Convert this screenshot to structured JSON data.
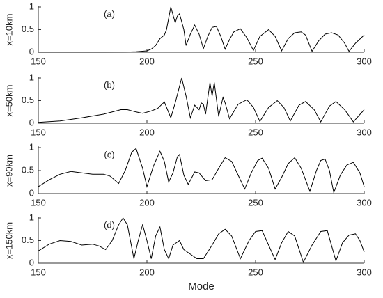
{
  "chart_data": [
    {
      "type": "line",
      "annotation": "(a)",
      "ylabel": "x=10km",
      "x": [
        150,
        160,
        170,
        180,
        190,
        195,
        200,
        202,
        204,
        206,
        208,
        209,
        211,
        213,
        214,
        215,
        217,
        218,
        220,
        222,
        224,
        226,
        228,
        230,
        232,
        234,
        236,
        238,
        240,
        243,
        246,
        249,
        252,
        256,
        259,
        262,
        265,
        268,
        271,
        273,
        276,
        279,
        282,
        285,
        288,
        291,
        293,
        296,
        300
      ],
      "values": [
        0,
        0,
        0,
        0,
        0.005,
        0.01,
        0.03,
        0.07,
        0.15,
        0.3,
        0.38,
        0.5,
        1.0,
        0.65,
        0.8,
        0.85,
        0.5,
        0.15,
        0.4,
        0.6,
        0.4,
        0.08,
        0.35,
        0.55,
        0.57,
        0.35,
        0.07,
        0.28,
        0.45,
        0.52,
        0.32,
        0.04,
        0.35,
        0.5,
        0.35,
        0.03,
        0.3,
        0.43,
        0.45,
        0.38,
        0.02,
        0.25,
        0.4,
        0.43,
        0.38,
        0.2,
        0.02,
        0.2,
        0.38
      ],
      "color": "#000000",
      "xlim": [
        150,
        300
      ],
      "ylim": [
        0,
        1
      ],
      "xticks": [
        150,
        200,
        250,
        300
      ],
      "yticks": [
        0,
        0.5,
        1
      ]
    },
    {
      "type": "line",
      "annotation": "(b)",
      "ylabel": "x=50km",
      "x": [
        150,
        160,
        170,
        180,
        188,
        191,
        195,
        198,
        202,
        205,
        208,
        211,
        213,
        216,
        218,
        220,
        222,
        224,
        225,
        226,
        227,
        229,
        230,
        231,
        233,
        235,
        236,
        238,
        242,
        246,
        249,
        252,
        256,
        260,
        263,
        266,
        270,
        273,
        277,
        280,
        284,
        287,
        291,
        295,
        300
      ],
      "values": [
        0.02,
        0.05,
        0.12,
        0.2,
        0.3,
        0.3,
        0.25,
        0.22,
        0.27,
        0.33,
        0.47,
        0.12,
        0.45,
        1.0,
        0.6,
        0.12,
        0.4,
        0.3,
        0.45,
        0.42,
        0.2,
        0.9,
        0.6,
        0.9,
        0.15,
        0.57,
        0.45,
        0.1,
        0.42,
        0.52,
        0.35,
        0.04,
        0.35,
        0.5,
        0.35,
        0.05,
        0.4,
        0.48,
        0.3,
        0.03,
        0.38,
        0.48,
        0.3,
        0.03,
        0.3
      ],
      "color": "#000000",
      "xlim": [
        150,
        300
      ],
      "ylim": [
        0,
        1
      ],
      "xticks": [
        150,
        200,
        250,
        300
      ],
      "yticks": [
        0,
        0.5,
        1
      ]
    },
    {
      "type": "line",
      "annotation": "(c)",
      "ylabel": "x=90km",
      "x": [
        150,
        155,
        160,
        165,
        170,
        175,
        180,
        183,
        187,
        190,
        193,
        195,
        198,
        200,
        203,
        206,
        208,
        210,
        212,
        214,
        215,
        217,
        219,
        222,
        224,
        227,
        230,
        233,
        236,
        239,
        242,
        245,
        248,
        251,
        253,
        256,
        259,
        262,
        265,
        268,
        271,
        275,
        278,
        280,
        282,
        284,
        286,
        289,
        292,
        295,
        298,
        300
      ],
      "values": [
        0.15,
        0.3,
        0.42,
        0.48,
        0.45,
        0.42,
        0.42,
        0.38,
        0.22,
        0.5,
        0.9,
        0.98,
        0.55,
        0.15,
        0.6,
        0.92,
        0.7,
        0.25,
        0.45,
        0.8,
        0.85,
        0.4,
        0.2,
        0.47,
        0.45,
        0.28,
        0.3,
        0.55,
        0.78,
        0.7,
        0.4,
        0.1,
        0.45,
        0.72,
        0.77,
        0.55,
        0.1,
        0.35,
        0.65,
        0.78,
        0.55,
        0.05,
        0.5,
        0.72,
        0.75,
        0.5,
        0.02,
        0.4,
        0.62,
        0.68,
        0.45,
        0.15
      ],
      "color": "#000000",
      "xlim": [
        150,
        300
      ],
      "ylim": [
        0,
        1
      ],
      "xticks": [
        150,
        200,
        250,
        300
      ],
      "yticks": [
        0,
        0.5,
        1
      ]
    },
    {
      "type": "line",
      "annotation": "(d)",
      "ylabel": "x=150km",
      "xlabel": "Mode",
      "x": [
        150,
        155,
        160,
        165,
        170,
        175,
        178,
        181,
        184,
        187,
        189,
        191,
        194,
        196,
        198,
        200,
        202,
        204,
        206,
        208,
        210,
        212,
        215,
        217,
        220,
        223,
        226,
        230,
        233,
        236,
        239,
        243,
        247,
        250,
        253,
        256,
        259,
        262,
        265,
        268,
        272,
        276,
        280,
        283,
        287,
        290,
        293,
        296,
        298,
        300
      ],
      "values": [
        0.27,
        0.42,
        0.5,
        0.48,
        0.4,
        0.42,
        0.38,
        0.3,
        0.5,
        0.85,
        1.0,
        0.85,
        0.1,
        0.5,
        0.85,
        0.5,
        0.1,
        0.6,
        0.8,
        0.3,
        0.1,
        0.4,
        0.5,
        0.3,
        0.2,
        0.1,
        0.1,
        0.4,
        0.65,
        0.75,
        0.6,
        0.1,
        0.5,
        0.7,
        0.72,
        0.4,
        0.08,
        0.45,
        0.7,
        0.6,
        0.02,
        0.4,
        0.7,
        0.72,
        0.05,
        0.45,
        0.62,
        0.65,
        0.5,
        0.25
      ],
      "color": "#000000",
      "xlim": [
        150,
        300
      ],
      "ylim": [
        0,
        1
      ],
      "xticks": [
        150,
        200,
        250,
        300
      ],
      "yticks": [
        0,
        0.5,
        1
      ]
    }
  ]
}
